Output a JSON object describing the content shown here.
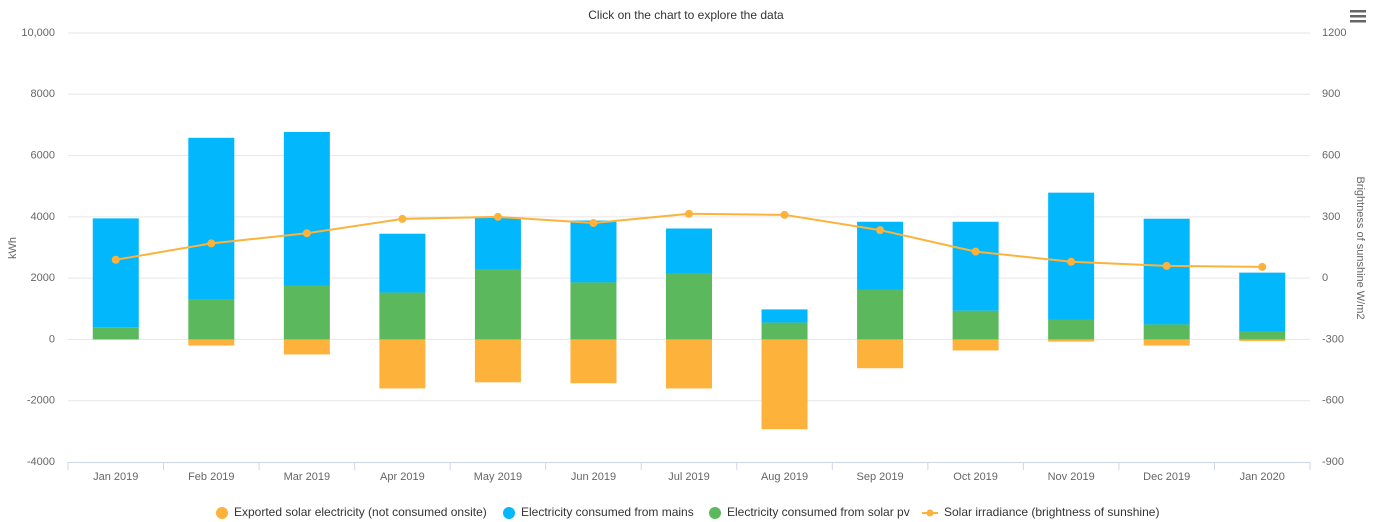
{
  "chart_data": {
    "type": "bar",
    "title": "Click on the chart to explore the data",
    "y_label": "kWh",
    "y2_label": "Brightness of sunshine W/m2",
    "categories": [
      "Jan 2019",
      "Feb 2019",
      "Mar 2019",
      "Apr 2019",
      "May 2019",
      "Jun 2019",
      "Jul 2019",
      "Aug 2019",
      "Sep 2019",
      "Oct 2019",
      "Nov 2019",
      "Dec 2019",
      "Jan 2020"
    ],
    "series": [
      {
        "name": "Exported solar electricity (not consumed onsite)",
        "type": "bar",
        "color": "#fdb23c",
        "values": [
          0,
          -200,
          -490,
          -1600,
          -1400,
          -1430,
          -1600,
          -2930,
          -940,
          -360,
          -70,
          -200,
          -50
        ]
      },
      {
        "name": "Electricity consumed from mains",
        "type": "bar",
        "color": "#03b7fc",
        "values": [
          3550,
          5280,
          5010,
          1920,
          1690,
          2020,
          1470,
          430,
          2210,
          2900,
          4140,
          3450,
          1920
        ]
      },
      {
        "name": "Electricity consumed from solar pv",
        "type": "bar",
        "color": "#5cb85c",
        "values": [
          400,
          1300,
          1760,
          1530,
          2280,
          1860,
          2150,
          550,
          1630,
          940,
          650,
          490,
          260
        ]
      },
      {
        "name": "Solar irradiance (brightness of sunshine)",
        "type": "line",
        "axis": "y2",
        "color": "#fdb23c",
        "values": [
          90,
          170,
          220,
          290,
          300,
          270,
          315,
          310,
          235,
          130,
          80,
          60,
          55
        ]
      }
    ],
    "stacked": true,
    "ylim": [
      -4000,
      10000
    ],
    "yticks": [
      -4000,
      -2000,
      0,
      2000,
      4000,
      6000,
      8000,
      {
        "value": 10000,
        "label": "10,000"
      }
    ],
    "y2lim": [
      -900,
      1200
    ],
    "y2ticks": [
      -900,
      -600,
      -300,
      0,
      300,
      600,
      900,
      1200
    ],
    "grid": true,
    "legend": "bottom"
  }
}
